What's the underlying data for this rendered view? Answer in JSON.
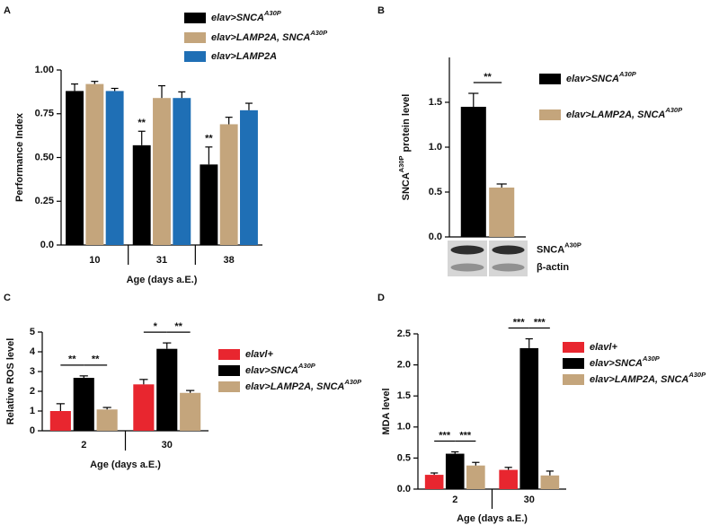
{
  "chart_data": [
    {
      "type": "bar",
      "panel": "A",
      "categories": [
        "10",
        "31",
        "38"
      ],
      "series": [
        {
          "name": "elav>SNCA",
          "name_sup": "A30P",
          "color": "#000000",
          "values": [
            0.88,
            0.57,
            0.46
          ],
          "errors": [
            0.04,
            0.08,
            0.1
          ]
        },
        {
          "name": "elav>LAMP2A, SNCA",
          "name_sup": "A30P",
          "color": "#c4a57c",
          "values": [
            0.92,
            0.84,
            0.69
          ],
          "errors": [
            0.015,
            0.07,
            0.04
          ]
        },
        {
          "name": "elav>LAMP2A",
          "color": "#1f6fb5",
          "values": [
            0.88,
            0.84,
            0.77
          ],
          "errors": [
            0.015,
            0.035,
            0.04
          ]
        }
      ],
      "ylim": [
        0,
        1
      ],
      "yticks": [
        {
          "value": 0,
          "label": "0.0"
        },
        0.25,
        {
          "value": 0.5,
          "label": "0.50"
        },
        0.75,
        {
          "value": 1,
          "label": "1.00"
        }
      ],
      "ylabel": {
        "text": "Performance Index"
      },
      "xlabel": "Age (days a.E.)",
      "annotations": [
        "**",
        "**"
      ],
      "legend": "upper right"
    },
    {
      "type": "bar",
      "panel": "B",
      "series": [
        {
          "name": "elav>SNCA",
          "name_sup": "A30P",
          "color": "#000000",
          "values": [
            1.45
          ],
          "errors": [
            0.15
          ]
        },
        {
          "name": "elav>LAMP2A, SNCA",
          "name_sup": "A30P",
          "color": "#c4a57c",
          "values": [
            0.55
          ],
          "errors": [
            0.04
          ]
        }
      ],
      "ylim": [
        0,
        2
      ],
      "yticks": [
        {
          "value": 0,
          "label": "0.0"
        },
        0.5,
        {
          "value": 1,
          "label": "1.0"
        },
        1.5
      ],
      "ylabel": {
        "text": "SNCA",
        "sup": "A30P",
        "rest": "protein level"
      },
      "annotations": [
        "**"
      ],
      "blot_labels": [
        {
          "text": "SNCA",
          "sup": "A30P"
        },
        {
          "text": "β-actin"
        }
      ],
      "legend": "upper right"
    },
    {
      "type": "bar",
      "panel": "C",
      "categories": [
        "2",
        "30"
      ],
      "series": [
        {
          "name": "elavl+",
          "color": "#e8262f",
          "values": [
            1.0,
            2.35
          ],
          "errors": [
            0.37,
            0.25
          ]
        },
        {
          "name": "elav>SNCA",
          "name_sup": "A30P",
          "color": "#000000",
          "values": [
            2.68,
            4.15
          ],
          "errors": [
            0.1,
            0.3
          ]
        },
        {
          "name": "elav>LAMP2A, SNCA",
          "name_sup": "A30P",
          "color": "#c4a57c",
          "values": [
            1.08,
            1.92
          ],
          "errors": [
            0.1,
            0.12
          ]
        }
      ],
      "ylim": [
        0,
        5
      ],
      "yticks": [
        0,
        1,
        2,
        3,
        4,
        5
      ],
      "ylabel": {
        "text": "Relative ROS level"
      },
      "xlabel": "Age (days a.E.)",
      "annotations": [
        "**",
        "**",
        "*",
        "**"
      ],
      "legend": "upper right"
    },
    {
      "type": "bar",
      "panel": "D",
      "categories": [
        "2",
        "30"
      ],
      "series": [
        {
          "name": "elavl+",
          "color": "#e8262f",
          "values": [
            0.23,
            0.31
          ],
          "errors": [
            0.03,
            0.04
          ]
        },
        {
          "name": "elav>SNCA",
          "name_sup": "A30P",
          "color": "#000000",
          "values": [
            0.57,
            2.27
          ],
          "errors": [
            0.03,
            0.15
          ]
        },
        {
          "name": "elav>LAMP2A, SNCA",
          "name_sup": "A30P",
          "color": "#c4a57c",
          "values": [
            0.38,
            0.22
          ],
          "errors": [
            0.05,
            0.07
          ]
        }
      ],
      "ylim": [
        0,
        2.5
      ],
      "yticks": [
        {
          "value": 0,
          "label": "0.0"
        },
        0.5,
        {
          "value": 1,
          "label": "1.0"
        },
        1.5,
        {
          "value": 2,
          "label": "2.0"
        },
        2.5
      ],
      "ylabel": {
        "text": "MDA level"
      },
      "xlabel": "Age (days a.E.)",
      "annotations": [
        "***",
        "***",
        "***",
        "***"
      ],
      "legend": "upper right"
    }
  ]
}
